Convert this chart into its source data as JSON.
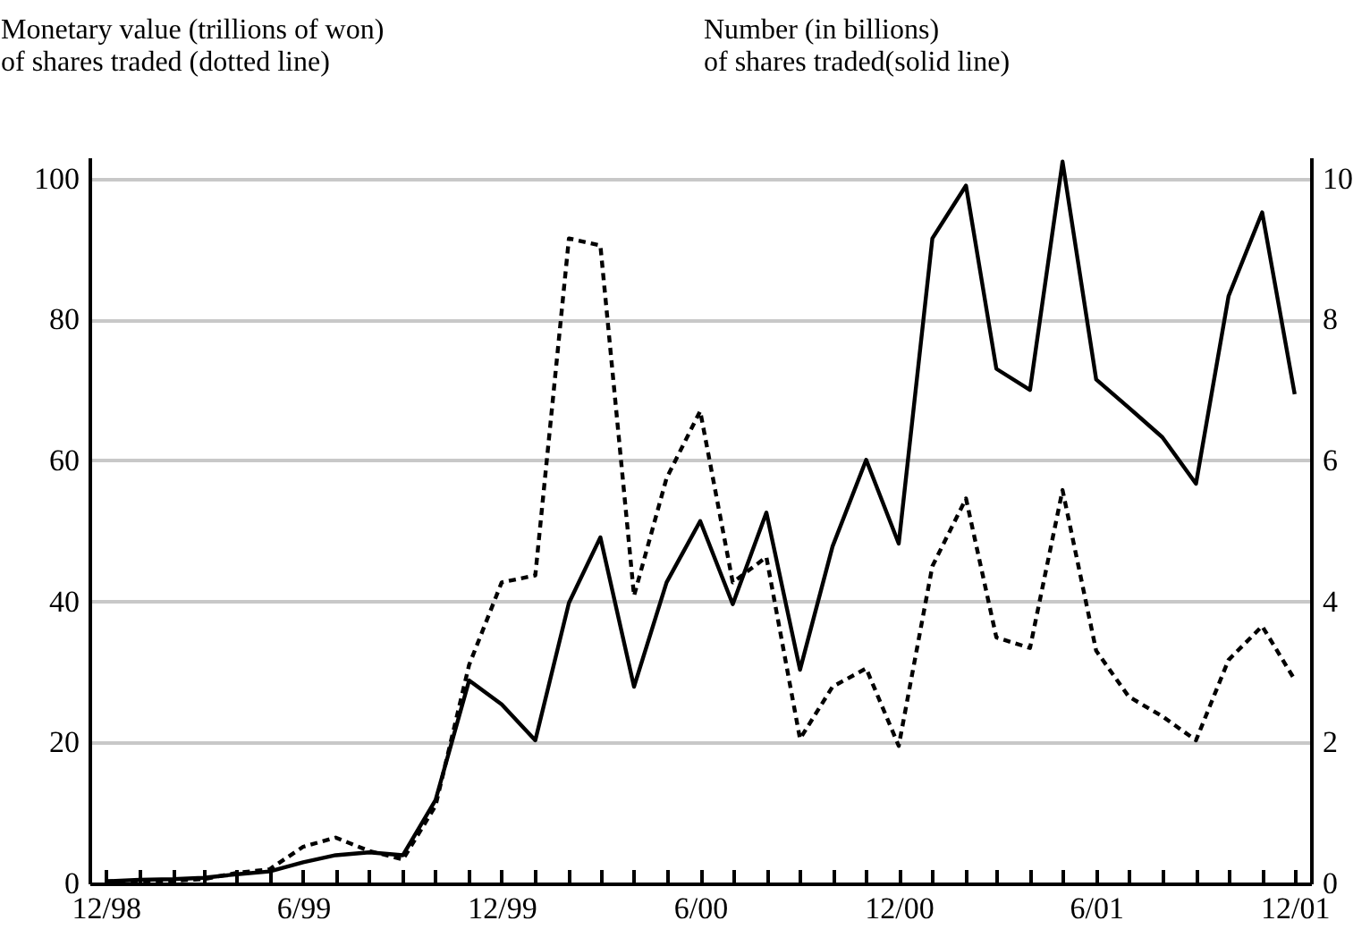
{
  "chart_data": {
    "type": "line",
    "ylabel": "Monetary value (trillions of won)\nof shares traded (dotted line)",
    "y2label": "Number (in billions)\nof shares traded(solid line)",
    "x": [
      "1998-12",
      "1999-01",
      "1999-02",
      "1999-03",
      "1999-04",
      "1999-05",
      "1999-06",
      "1999-07",
      "1999-08",
      "1999-09",
      "1999-10",
      "1999-11",
      "1999-12",
      "2000-01",
      "2000-02",
      "2000-03",
      "2000-04",
      "2000-05",
      "2000-06",
      "2000-07",
      "2000-08",
      "2000-09",
      "2000-10",
      "2000-11",
      "2000-12",
      "2001-01",
      "2001-02",
      "2001-03",
      "2001-04",
      "2001-05",
      "2001-06",
      "2001-07",
      "2001-08",
      "2001-09",
      "2001-10",
      "2001-11",
      "2001-12"
    ],
    "xlim": [
      "1998-11-16",
      "2001-12-16"
    ],
    "xticks": [
      {
        "value": "1998-12",
        "label": "12/98"
      },
      {
        "value": "1999-01",
        "label": null
      },
      {
        "value": "1999-02",
        "label": null
      },
      {
        "value": "1999-03",
        "label": null
      },
      {
        "value": "1999-04",
        "label": null
      },
      {
        "value": "1999-05",
        "label": null
      },
      {
        "value": "1999-06",
        "label": "6/99"
      },
      {
        "value": "1999-07",
        "label": null
      },
      {
        "value": "1999-08",
        "label": null
      },
      {
        "value": "1999-09",
        "label": null
      },
      {
        "value": "1999-10",
        "label": null
      },
      {
        "value": "1999-11",
        "label": null
      },
      {
        "value": "1999-12",
        "label": "12/99"
      },
      {
        "value": "2000-01",
        "label": null
      },
      {
        "value": "2000-02",
        "label": null
      },
      {
        "value": "2000-03",
        "label": null
      },
      {
        "value": "2000-04",
        "label": null
      },
      {
        "value": "2000-05",
        "label": null
      },
      {
        "value": "2000-06",
        "label": "6/00"
      },
      {
        "value": "2000-07",
        "label": null
      },
      {
        "value": "2000-08",
        "label": null
      },
      {
        "value": "2000-09",
        "label": null
      },
      {
        "value": "2000-10",
        "label": null
      },
      {
        "value": "2000-11",
        "label": null
      },
      {
        "value": "2000-12",
        "label": "12/00"
      },
      {
        "value": "2001-01",
        "label": null
      },
      {
        "value": "2001-02",
        "label": null
      },
      {
        "value": "2001-03",
        "label": null
      },
      {
        "value": "2001-04",
        "label": null
      },
      {
        "value": "2001-05",
        "label": null
      },
      {
        "value": "2001-06",
        "label": "6/01"
      },
      {
        "value": "2001-07",
        "label": null
      },
      {
        "value": "2001-08",
        "label": null
      },
      {
        "value": "2001-09",
        "label": null
      },
      {
        "value": "2001-10",
        "label": null
      },
      {
        "value": "2001-11",
        "label": null
      },
      {
        "value": "2001-12",
        "label": "12/01"
      }
    ],
    "ylim": [
      0,
      103
    ],
    "yticks": [
      0,
      20,
      40,
      60,
      80,
      100
    ],
    "y2lim": [
      0,
      10.3
    ],
    "y2ticks": [
      0,
      2,
      4,
      6,
      8,
      10
    ],
    "grid": "y",
    "series": [
      {
        "color": "#000000",
        "line_style": "dashed",
        "values": [
          0.3,
          0.3,
          0.4,
          0.6,
          1.5,
          2,
          5.2,
          6.5,
          4.6,
          3.4,
          11,
          31,
          42.7,
          43.7,
          91.5,
          90.5,
          40.8,
          57.5,
          67,
          42.7,
          46.3,
          20.5,
          27.9,
          30.5,
          19.5,
          45,
          54.6,
          34.9,
          33.4,
          55.8,
          33,
          26.5,
          23.7,
          20.3,
          31.7,
          36.5,
          28.9
        ]
      },
      {
        "color": "#000000",
        "line_style": "solid",
        "axis": "y2",
        "values": [
          0.03,
          0.05,
          0.06,
          0.08,
          0.13,
          0.17,
          0.3,
          0.4,
          0.44,
          0.4,
          1.18,
          2.88,
          2.54,
          2.03,
          3.98,
          4.91,
          2.79,
          4.27,
          5.14,
          3.96,
          5.26,
          3.03,
          4.78,
          6.01,
          4.82,
          9.15,
          9.9,
          7.3,
          7.0,
          10.24,
          7.15,
          6.75,
          6.33,
          5.67,
          8.33,
          9.52,
          6.94
        ]
      }
    ]
  }
}
